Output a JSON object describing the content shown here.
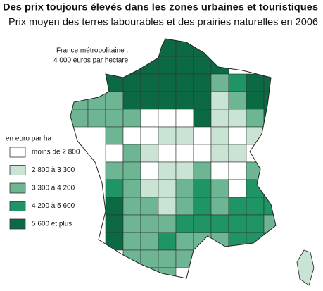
{
  "title": "Des prix toujours élevés dans les zones urbaines et touristiques",
  "subtitle": "Prix moyen des terres labourables et des prairies naturelles en 2006",
  "annotation": [
    "France métropolitaine  :",
    "4 000 euros par hectare"
  ],
  "legend": {
    "title": "en euro par ha",
    "items": [
      {
        "label": "moins de 2 800",
        "color": "#ffffff"
      },
      {
        "label": "2 800 à 3 300",
        "color": "#c9e3d4"
      },
      {
        "label": "3 300 à 4 200",
        "color": "#6db593"
      },
      {
        "label": "4 200 à 5 600",
        "color": "#1f9464"
      },
      {
        "label": "5 600 et plus",
        "color": "#0b6a44"
      }
    ]
  }
}
